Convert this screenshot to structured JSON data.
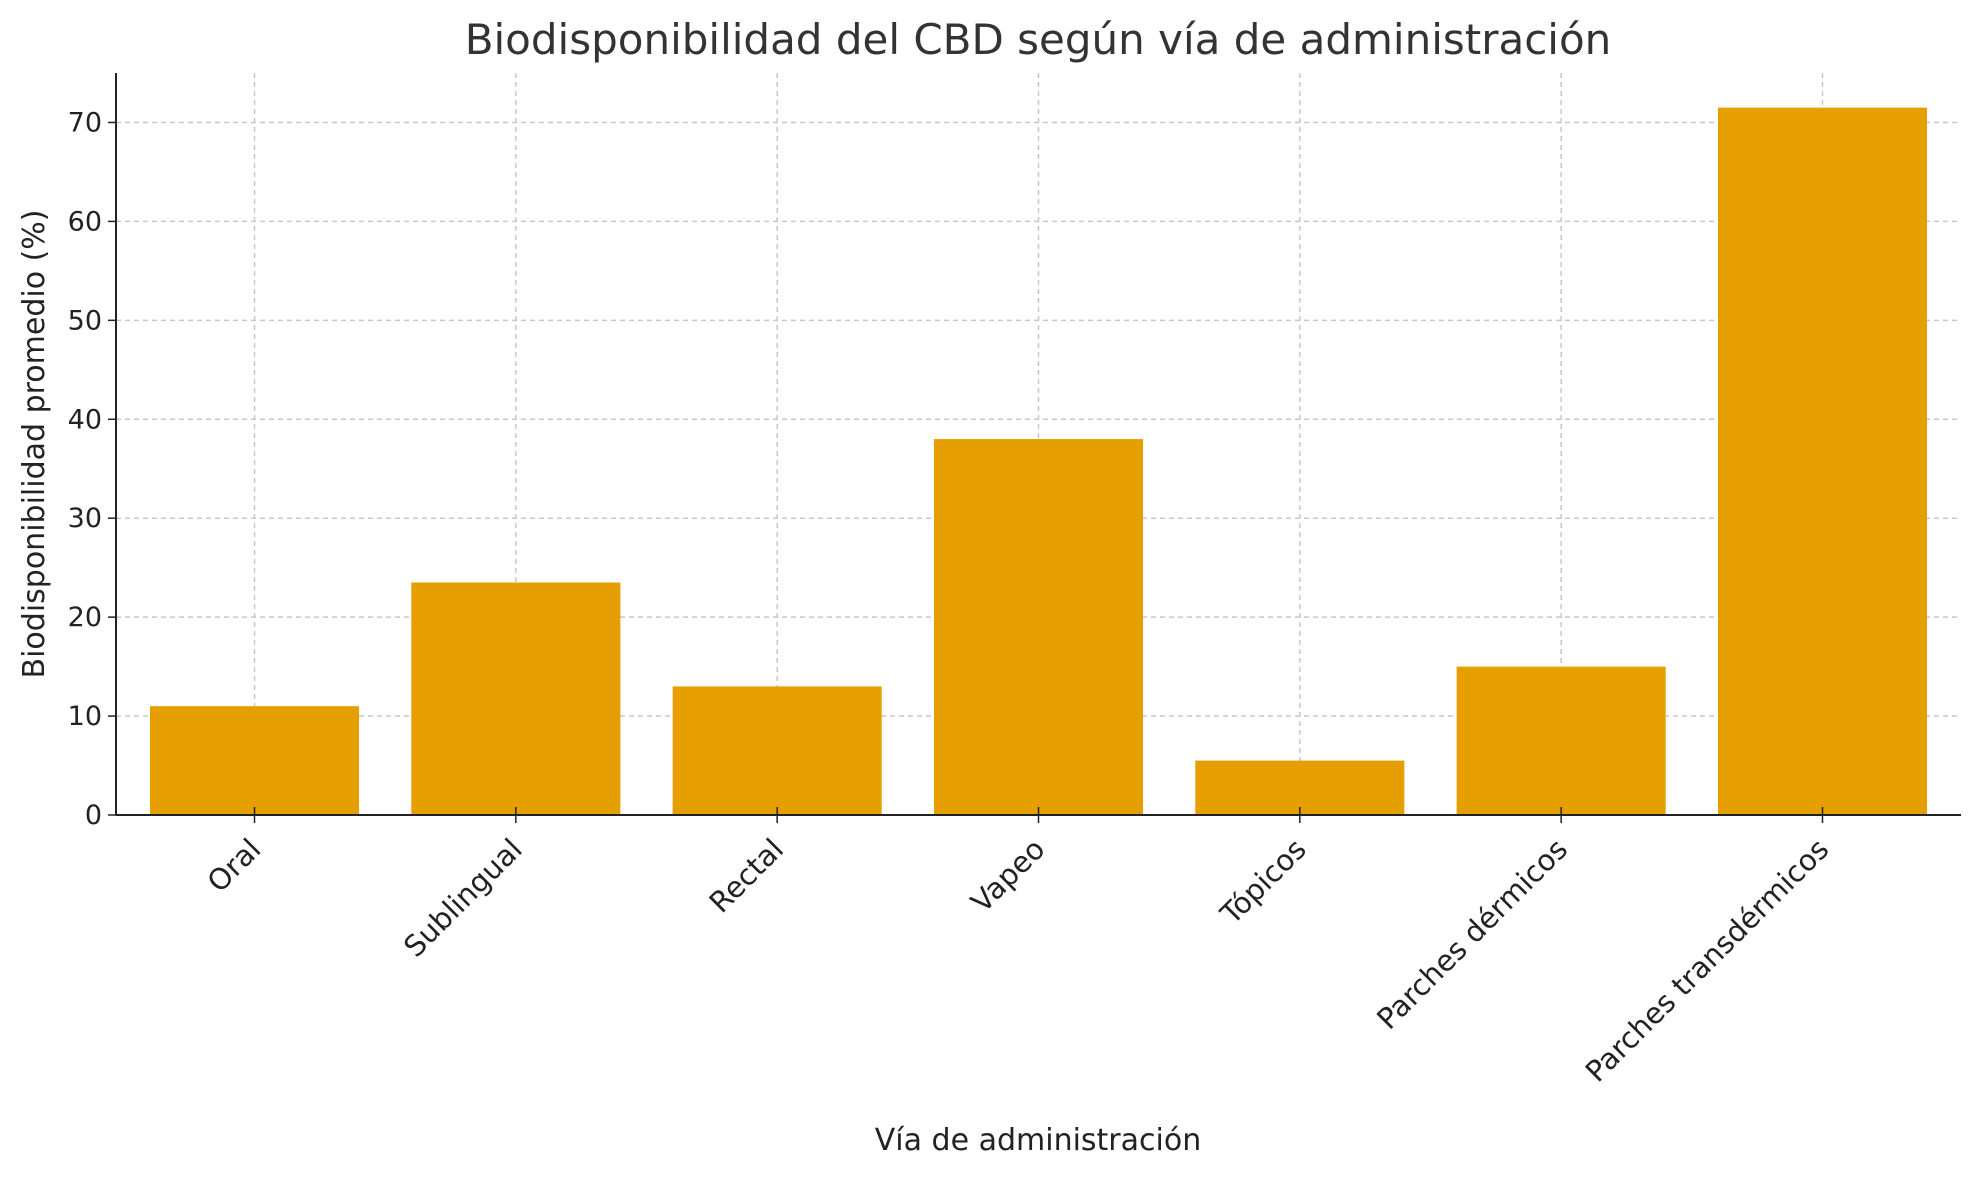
{
  "chart_data": {
    "type": "bar",
    "title": "Biodisponibilidad del CBD según vía de administración",
    "xlabel": "Vía de administración",
    "ylabel": "Biodisponibilidad promedio (%)",
    "categories": [
      "Oral",
      "Sublingual",
      "Rectal",
      "Vapeo",
      "Tópicos",
      "Parches dérmicos",
      "Parches transdérmicos"
    ],
    "values": [
      11,
      23.5,
      13,
      38,
      5.5,
      15,
      71.5
    ],
    "ylim": [
      0,
      75
    ],
    "yticks": [
      0,
      10,
      20,
      30,
      40,
      50,
      60,
      70
    ],
    "grid": true,
    "bar_color": "#E69F00"
  }
}
